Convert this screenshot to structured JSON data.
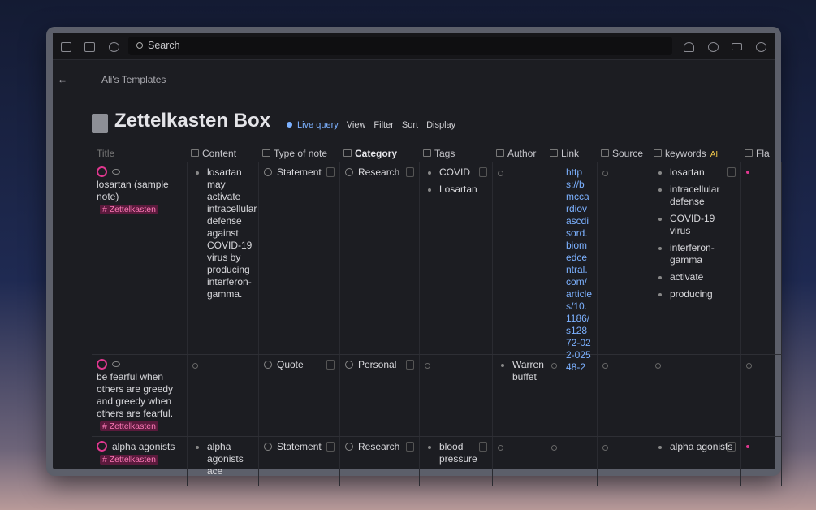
{
  "toolbar": {
    "search": "Search"
  },
  "breadcrumb": "Ali's Templates",
  "page": {
    "title": "Zettelkasten Box",
    "live_query": "Live query",
    "actions": [
      "View",
      "Filter",
      "Sort",
      "Display"
    ]
  },
  "table": {
    "columns": [
      "Title",
      "Content",
      "Type of note",
      "Category",
      "Tags",
      "Author",
      "Link",
      "Source",
      "keywords",
      "Fla"
    ],
    "ai_badge": "AI",
    "rows": [
      {
        "title": "losartan (sample note)",
        "tag": "# Zettelkasten",
        "content": "losartan may activate intracellular defense against COVID-19 virus by producing interferon-gamma.",
        "type": "Statement",
        "category": "Research",
        "tags": [
          "COVID",
          "Losartan"
        ],
        "author": [],
        "link": "https://bmccardiovascdisord.biomedcentral.com/articles/10.1186/s12872-022-02548-2",
        "keywords": [
          "losartan",
          "intracellular defense",
          "COVID-19 virus",
          "interferon-gamma",
          "activate",
          "producing"
        ]
      },
      {
        "title": "be fearful when others are greedy and greedy when others are fearful.",
        "tag": "# Zettelkasten",
        "content": "",
        "type": "Quote",
        "category": "Personal",
        "tags": [],
        "author": [
          "Warren buffet"
        ],
        "link": "",
        "keywords": []
      },
      {
        "title": "alpha agonists",
        "tag": "# Zettelkasten",
        "content": "alpha agonists ace",
        "type": "Statement",
        "category": "Research",
        "tags": [
          "blood pressure"
        ],
        "author": [],
        "link": "",
        "keywords": [
          "alpha agonists"
        ]
      }
    ]
  }
}
